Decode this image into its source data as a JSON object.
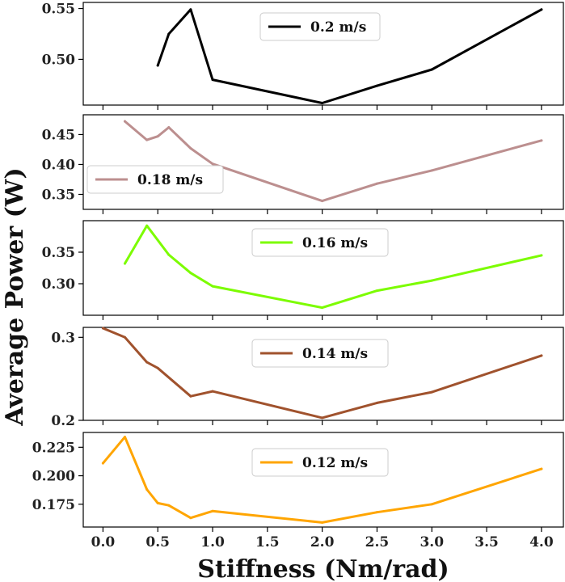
{
  "chart_data": {
    "type": "line",
    "xlabel": "Stiffness (Nm/rad)",
    "ylabel": "Average Power (W)",
    "xlim": [
      -0.18,
      4.2
    ],
    "xticks": [
      0.0,
      0.5,
      1.0,
      1.5,
      2.0,
      2.5,
      3.0,
      3.5,
      4.0
    ],
    "xtick_labels": [
      "0.0",
      "0.5",
      "1.0",
      "1.5",
      "2.0",
      "2.5",
      "3.0",
      "3.5",
      "4.0"
    ],
    "panels": [
      {
        "legend": "0.2 m/s",
        "color": "#000000",
        "legend_position": "upper-center",
        "ylim": [
          0.455,
          0.556
        ],
        "yticks": [
          0.5,
          0.55
        ],
        "ytick_labels": [
          "0.50",
          "0.55"
        ],
        "x": [
          0.5,
          0.6,
          0.8,
          1.0,
          2.0,
          2.5,
          3.0,
          4.0
        ],
        "y": [
          0.494,
          0.525,
          0.549,
          0.48,
          0.457,
          0.474,
          0.49,
          0.549
        ]
      },
      {
        "legend": "0.18 m/s",
        "color": "#bc8f8f",
        "legend_position": "lower-left",
        "ylim": [
          0.325,
          0.483
        ],
        "yticks": [
          0.35,
          0.4,
          0.45
        ],
        "ytick_labels": [
          "0.35",
          "0.40",
          "0.45"
        ],
        "x": [
          0.2,
          0.4,
          0.5,
          0.6,
          0.8,
          1.0,
          2.0,
          2.5,
          3.0,
          4.0
        ],
        "y": [
          0.472,
          0.441,
          0.447,
          0.462,
          0.427,
          0.401,
          0.339,
          0.368,
          0.39,
          0.44
        ]
      },
      {
        "legend": "0.16 m/s",
        "color": "#7cfc00",
        "legend_position": "upper-center",
        "ylim": [
          0.25,
          0.4
        ],
        "yticks": [
          0.3,
          0.35
        ],
        "ytick_labels": [
          "0.30",
          "0.35"
        ],
        "x": [
          0.2,
          0.4,
          0.6,
          0.8,
          1.0,
          2.0,
          2.5,
          3.0,
          4.0
        ],
        "y": [
          0.332,
          0.392,
          0.346,
          0.317,
          0.296,
          0.262,
          0.289,
          0.305,
          0.345
        ]
      },
      {
        "legend": "0.14 m/s",
        "color": "#a0522d",
        "legend_position": "upper-center",
        "ylim": [
          0.2,
          0.312
        ],
        "yticks": [
          0.2,
          0.3
        ],
        "ytick_labels": [
          "0.2",
          "0.3"
        ],
        "x": [
          0.0,
          0.2,
          0.4,
          0.5,
          0.8,
          1.0,
          2.0,
          2.5,
          3.0,
          4.0
        ],
        "y": [
          0.311,
          0.3,
          0.27,
          0.263,
          0.229,
          0.235,
          0.203,
          0.221,
          0.234,
          0.278
        ]
      },
      {
        "legend": "0.12 m/s",
        "color": "#ffa500",
        "legend_position": "upper-center",
        "ylim": [
          0.155,
          0.238
        ],
        "yticks": [
          0.175,
          0.2,
          0.225
        ],
        "ytick_labels": [
          "0.175",
          "0.200",
          "0.225"
        ],
        "x": [
          0.0,
          0.2,
          0.4,
          0.5,
          0.6,
          0.8,
          1.0,
          2.0,
          2.5,
          3.0,
          4.0
        ],
        "y": [
          0.211,
          0.234,
          0.188,
          0.176,
          0.174,
          0.163,
          0.169,
          0.159,
          0.168,
          0.175,
          0.206
        ]
      }
    ]
  }
}
